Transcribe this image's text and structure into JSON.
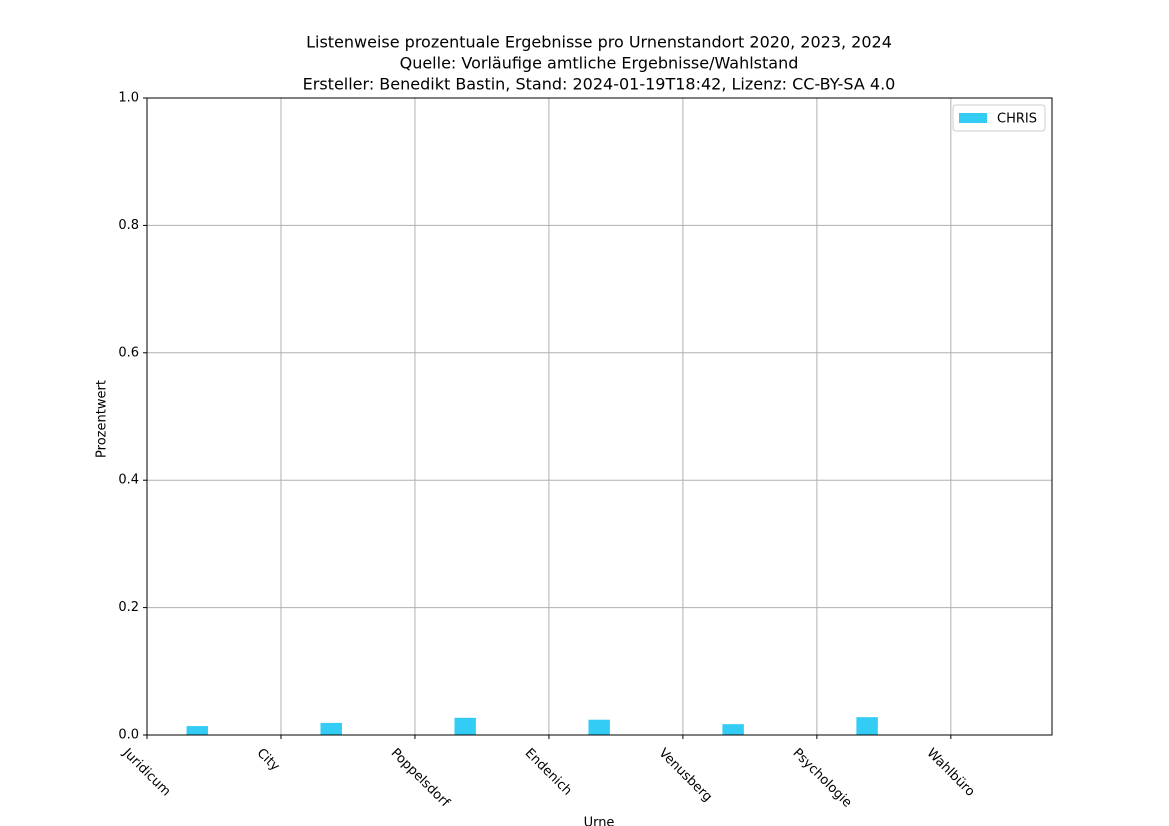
{
  "chart_data": {
    "type": "bar",
    "title": [
      "Listenweise prozentuale Ergebnisse pro Urnenstandort 2020, 2023, 2024",
      "Quelle: Vorläufige amtliche Ergebnisse/Wahlstand",
      "Ersteller: Benedikt Bastin, Stand: 2024-01-19T18:42, Lizenz: CC-BY-SA 4.0"
    ],
    "xlabel": "Urne",
    "ylabel": "Prozentwert",
    "x": [
      0.375,
      1.375,
      2.375,
      3.375,
      4.375,
      5.375
    ],
    "series": [
      {
        "name": "CHRIS",
        "color": "#33ccf5",
        "values": [
          0.014,
          0.019,
          0.027,
          0.024,
          0.017,
          0.028
        ]
      }
    ],
    "xlim": [
      0,
      6.755
    ],
    "xticks": [
      {
        "value": 0,
        "label": "Juridicum"
      },
      {
        "value": 1,
        "label": "City"
      },
      {
        "value": 2,
        "label": "Poppelsdorf"
      },
      {
        "value": 3,
        "label": "Endenich"
      },
      {
        "value": 4,
        "label": "Venusberg"
      },
      {
        "value": 5,
        "label": "Psychologie"
      },
      {
        "value": 6,
        "label": "Wahlbüro"
      }
    ],
    "ylim": [
      0,
      1
    ],
    "yticks": [
      {
        "value": 0,
        "label": "0.0"
      },
      {
        "value": 0.2,
        "label": "0.2"
      },
      {
        "value": 0.4,
        "label": "0.4"
      },
      {
        "value": 0.6,
        "label": "0.6"
      },
      {
        "value": 0.8,
        "label": "0.8"
      },
      {
        "value": 1,
        "label": "1.0"
      }
    ],
    "grid": true,
    "legend": "upper right"
  }
}
